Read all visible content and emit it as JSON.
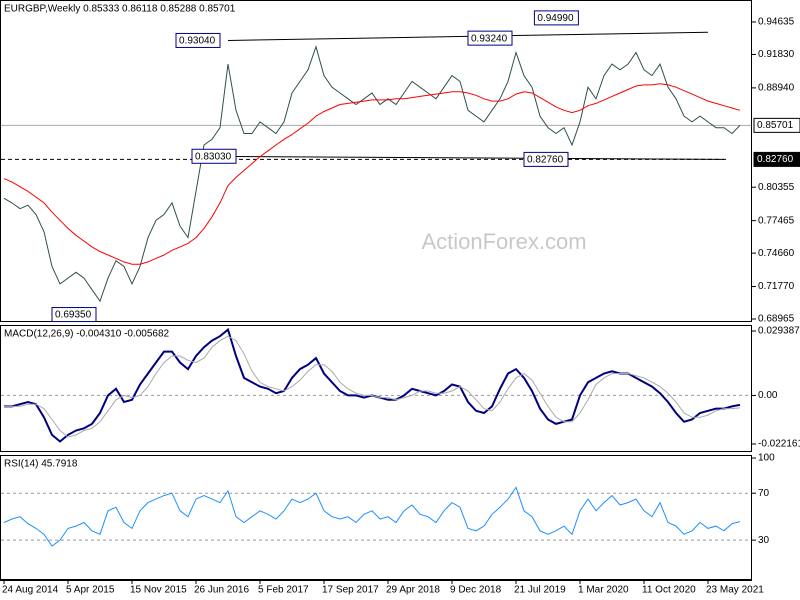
{
  "chart_data": [
    {
      "type": "line",
      "title": "EURGBP,Weekly  0.85333 0.86118 0.85288 0.85701",
      "watermark": "ActionForex.com",
      "categories": [
        "24 Aug 2014",
        null,
        null,
        null,
        null,
        null,
        null,
        null,
        "5 Apr 2015",
        null,
        null,
        null,
        null,
        null,
        null,
        null,
        "15 Nov 2015",
        null,
        null,
        null,
        null,
        null,
        null,
        null,
        "26 Jun 2016",
        null,
        null,
        null,
        null,
        null,
        null,
        null,
        "5 Feb 2017",
        null,
        null,
        null,
        null,
        null,
        null,
        null,
        "17 Sep 2017",
        null,
        null,
        null,
        null,
        null,
        null,
        null,
        "29 Apr 2018",
        null,
        null,
        null,
        null,
        null,
        null,
        null,
        "9 Dec 2018",
        null,
        null,
        null,
        null,
        null,
        null,
        null,
        "21 Jul 2019",
        null,
        null,
        null,
        null,
        null,
        null,
        null,
        "1 Mar 2020",
        null,
        null,
        null,
        null,
        null,
        null,
        null,
        "11 Oct 2020",
        null,
        null,
        null,
        null,
        null,
        null,
        null,
        "23 May 2021",
        null,
        null,
        null,
        null
      ],
      "series": [
        {
          "color": "#2f4f4f",
          "values": [
            0.794,
            0.79,
            0.785,
            0.788,
            0.78,
            0.765,
            0.735,
            0.72,
            0.725,
            0.73,
            0.725,
            0.715,
            0.705,
            0.725,
            0.74,
            0.735,
            0.72,
            0.735,
            0.76,
            0.775,
            0.78,
            0.79,
            0.77,
            0.76,
            0.8,
            0.84,
            0.845,
            0.855,
            0.91,
            0.87,
            0.85,
            0.85,
            0.86,
            0.855,
            0.85,
            0.86,
            0.885,
            0.895,
            0.905,
            0.925,
            0.9,
            0.89,
            0.885,
            0.88,
            0.875,
            0.88,
            0.885,
            0.875,
            0.88,
            0.875,
            0.885,
            0.895,
            0.89,
            0.885,
            0.88,
            0.89,
            0.9,
            0.895,
            0.87,
            0.865,
            0.86,
            0.87,
            0.88,
            0.895,
            0.92,
            0.9,
            0.89,
            0.865,
            0.855,
            0.85,
            0.855,
            0.84,
            0.86,
            0.89,
            0.88,
            0.9,
            0.91,
            0.905,
            0.91,
            0.92,
            0.905,
            0.9,
            0.91,
            0.89,
            0.88,
            0.865,
            0.86,
            0.865,
            0.86,
            0.855,
            0.855,
            0.85,
            0.85701
          ]
        },
        {
          "color": "#ff0000",
          "values": [
            0.811,
            0.808,
            0.804,
            0.8,
            0.795,
            0.79,
            0.782,
            0.775,
            0.768,
            0.762,
            0.757,
            0.752,
            0.748,
            0.745,
            0.742,
            0.739,
            0.737,
            0.737,
            0.739,
            0.742,
            0.745,
            0.749,
            0.752,
            0.755,
            0.76,
            0.768,
            0.778,
            0.79,
            0.805,
            0.812,
            0.818,
            0.824,
            0.83,
            0.835,
            0.84,
            0.845,
            0.849,
            0.854,
            0.859,
            0.865,
            0.869,
            0.872,
            0.875,
            0.876,
            0.877,
            0.878,
            0.879,
            0.879,
            0.879,
            0.88,
            0.88,
            0.881,
            0.882,
            0.883,
            0.884,
            0.885,
            0.886,
            0.886,
            0.885,
            0.883,
            0.88,
            0.878,
            0.878,
            0.88,
            0.884,
            0.886,
            0.885,
            0.881,
            0.877,
            0.873,
            0.87,
            0.868,
            0.87,
            0.874,
            0.876,
            0.879,
            0.882,
            0.885,
            0.888,
            0.891,
            0.892,
            0.892,
            0.893,
            0.892,
            0.89,
            0.887,
            0.884,
            0.881,
            0.878,
            0.876,
            0.874,
            0.872,
            0.87
          ]
        }
      ],
      "ylim": [
        0.68706,
        0.96536
      ],
      "yticks": [
        0.94635,
        {
          "value": 0.9183,
          "label": "0.91830"
        },
        {
          "value": 0.8894,
          "label": "0.88940"
        },
        0.80355,
        0.77465,
        {
          "value": 0.7466,
          "label": "0.74660"
        },
        {
          "value": 0.7177,
          "label": "0.71770"
        },
        0.68965
      ],
      "price_lines": [
        {
          "value": 0.85701
        },
        {
          "value": 0.8276,
          "label": "0.82760"
        }
      ],
      "trendlines": [
        {
          "x": [
            28,
            88
          ],
          "y": [
            0.9304,
            0.9375
          ]
        },
        {
          "x": [
            24,
            90
          ],
          "y": [
            0.8303,
            0.8276
          ]
        }
      ],
      "annotations": [
        {
          "x": 27.5,
          "value": 0.9304,
          "label": "0.93040"
        },
        {
          "x": 64,
          "value": 0.9324,
          "label": "0.93240"
        },
        {
          "x": 72.3,
          "value": 0.9499,
          "label": "0.94990"
        },
        {
          "x": 29.5,
          "value": 0.8303,
          "label": "0.83030"
        },
        {
          "x": 71,
          "value": 0.8276,
          "label": "0.82760"
        },
        {
          "x": 12,
          "value": 0.6935,
          "label": "0.69350"
        }
      ]
    },
    {
      "type": "line",
      "title": "MACD(12,26,9) -0.004310 -0.005682",
      "series": [
        {
          "color": "#000080",
          "width": 2,
          "values": [
            -0.005,
            -0.005,
            -0.004,
            -0.003,
            -0.004,
            -0.01,
            -0.018,
            -0.021,
            -0.018,
            -0.016,
            -0.015,
            -0.013,
            -0.008,
            0.0,
            0.003,
            -0.003,
            -0.002,
            0.005,
            0.01,
            0.015,
            0.02,
            0.02,
            0.015,
            0.012,
            0.018,
            0.022,
            0.025,
            0.027,
            0.03,
            0.018,
            0.008,
            0.006,
            0.004,
            0.003,
            0.001,
            0.002,
            0.008,
            0.012,
            0.014,
            0.017,
            0.01,
            0.006,
            0.002,
            0.0,
            0.0,
            -0.001,
            0.0,
            -0.001,
            -0.002,
            -0.002,
            0.0,
            0.003,
            0.002,
            0.001,
            0.0,
            0.002,
            0.005,
            0.004,
            -0.003,
            -0.007,
            -0.008,
            -0.005,
            0.003,
            0.01,
            0.012,
            0.008,
            0.002,
            -0.006,
            -0.011,
            -0.013,
            -0.012,
            -0.011,
            0.0,
            0.006,
            0.008,
            0.01,
            0.011,
            0.01,
            0.01,
            0.008,
            0.006,
            0.004,
            0.001,
            -0.003,
            -0.008,
            -0.012,
            -0.011,
            -0.008,
            -0.007,
            -0.006,
            -0.006,
            -0.005,
            -0.00431
          ]
        },
        {
          "color": "#a9a9a9",
          "width": 1,
          "values": [
            -0.005,
            -0.005,
            -0.005,
            -0.004,
            -0.004,
            -0.006,
            -0.011,
            -0.016,
            -0.019,
            -0.018,
            -0.016,
            -0.015,
            -0.012,
            -0.007,
            -0.002,
            0.0,
            -0.001,
            0.0,
            0.004,
            0.01,
            0.015,
            0.018,
            0.018,
            0.016,
            0.015,
            0.017,
            0.022,
            0.025,
            0.027,
            0.025,
            0.019,
            0.011,
            0.006,
            0.004,
            0.003,
            0.002,
            0.004,
            0.007,
            0.011,
            0.014,
            0.014,
            0.011,
            0.006,
            0.003,
            0.001,
            0.0,
            0.0,
            -0.001,
            -0.001,
            -0.002,
            -0.001,
            0.0,
            0.002,
            0.002,
            0.001,
            0.001,
            0.002,
            0.004,
            0.002,
            -0.002,
            -0.006,
            -0.007,
            -0.003,
            0.003,
            0.008,
            0.01,
            0.007,
            0.001,
            -0.005,
            -0.01,
            -0.012,
            -0.012,
            -0.008,
            -0.002,
            0.005,
            0.008,
            0.01,
            0.01,
            0.01,
            0.009,
            0.008,
            0.006,
            0.004,
            0.001,
            -0.003,
            -0.008,
            -0.01,
            -0.01,
            -0.009,
            -0.007,
            -0.006,
            -0.006,
            -0.005682
          ]
        }
      ],
      "ylim": [
        -0.02581,
        0.03212
      ],
      "yticks": [
        0.029387,
        {
          "value": 0,
          "label": "0.00"
        },
        -0.022161
      ],
      "levels": [
        0
      ]
    },
    {
      "type": "line",
      "title": "RSI(14) 45.7918",
      "series": [
        {
          "color": "#1e90ff",
          "width": 1,
          "values": [
            45,
            48,
            50,
            44,
            40,
            35,
            25,
            30,
            40,
            42,
            45,
            38,
            35,
            55,
            58,
            45,
            40,
            55,
            62,
            65,
            68,
            70,
            55,
            50,
            65,
            68,
            65,
            62,
            72,
            50,
            45,
            50,
            55,
            52,
            48,
            55,
            65,
            62,
            65,
            70,
            55,
            50,
            48,
            50,
            45,
            52,
            55,
            48,
            50,
            45,
            55,
            60,
            52,
            50,
            45,
            55,
            62,
            58,
            40,
            38,
            42,
            52,
            58,
            65,
            75,
            55,
            50,
            38,
            35,
            38,
            42,
            35,
            55,
            65,
            55,
            62,
            68,
            60,
            62,
            65,
            55,
            50,
            62,
            45,
            42,
            35,
            38,
            45,
            40,
            42,
            38,
            44,
            45.7918
          ]
        }
      ],
      "ylim": [
        -4,
        102.6
      ],
      "yticks": [
        100,
        70,
        30
      ],
      "levels": [
        70,
        30
      ]
    }
  ]
}
